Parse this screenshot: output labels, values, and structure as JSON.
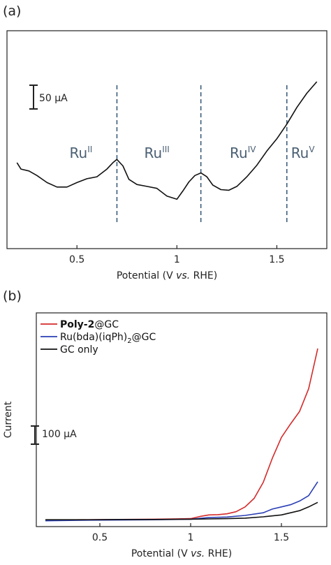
{
  "panel_a": {
    "label": "(a)",
    "scale_bar": "50 µA",
    "region_labels": [
      {
        "base": "Ru",
        "sup": "II",
        "x": 0.52
      },
      {
        "base": "Ru",
        "sup": "III",
        "x": 0.9
      },
      {
        "base": "Ru",
        "sup": "IV",
        "x": 1.33
      },
      {
        "base": "Ru",
        "sup": "V",
        "x": 1.63
      }
    ]
  },
  "panel_b": {
    "label": "(b)",
    "scale_bar": "100 µA",
    "legend": [
      {
        "bold": "Poly-2",
        "rest": "@GC",
        "sub": "",
        "after": "",
        "color": "#d42a2a"
      },
      {
        "bold": "",
        "rest": "Ru(bda)(iqPh)",
        "sub": "2",
        "after": "@GC",
        "color": "#2a3fb5"
      },
      {
        "bold": "",
        "rest": "GC only",
        "sub": "",
        "after": "",
        "color": "#111111"
      }
    ]
  },
  "chart_data": [
    {
      "type": "line",
      "xlabel_parts": [
        "Potential (V ",
        "vs.",
        " RHE)"
      ],
      "ylabel": "",
      "xlim": [
        0.15,
        1.75
      ],
      "x_ticks": [
        "0.5",
        "1",
        "1.5"
      ],
      "x_tick_values": [
        0.5,
        1.0,
        1.5
      ],
      "ylim": [
        0,
        200
      ],
      "y_units": "µA (relative)",
      "vlines": [
        0.7,
        1.12,
        1.55
      ],
      "series": [
        {
          "color": "#111111",
          "x": [
            0.2,
            0.22,
            0.26,
            0.3,
            0.35,
            0.4,
            0.45,
            0.5,
            0.55,
            0.6,
            0.65,
            0.68,
            0.7,
            0.73,
            0.76,
            0.8,
            0.85,
            0.9,
            0.95,
            1.0,
            1.03,
            1.06,
            1.09,
            1.12,
            1.15,
            1.18,
            1.22,
            1.26,
            1.3,
            1.35,
            1.4,
            1.45,
            1.5,
            1.55,
            1.6,
            1.65,
            1.7
          ],
          "y": [
            86,
            76,
            73,
            66,
            55,
            48,
            48,
            55,
            61,
            64,
            76,
            86,
            91,
            81,
            60,
            52,
            49,
            46,
            34,
            29,
            42,
            56,
            66,
            70,
            64,
            51,
            44,
            43,
            49,
            64,
            82,
            104,
            123,
            146,
            172,
            194,
            212
          ]
        }
      ]
    },
    {
      "type": "line",
      "ylabel": "Current",
      "xlabel_parts": [
        "Potential (V ",
        "vs.",
        " RHE)"
      ],
      "xlim": [
        0.15,
        1.75
      ],
      "x_ticks": [
        "0.5",
        "1",
        "1.5"
      ],
      "x_tick_values": [
        0.5,
        1.0,
        1.5
      ],
      "ylim": [
        0,
        700
      ],
      "y_units": "µA (relative)",
      "series": [
        {
          "name": "Poly-2@GC",
          "color": "#d42a2a",
          "x": [
            0.2,
            0.4,
            0.6,
            0.8,
            1.0,
            1.05,
            1.1,
            1.15,
            1.2,
            1.25,
            1.3,
            1.35,
            1.4,
            1.45,
            1.5,
            1.55,
            1.6,
            1.65,
            1.7
          ],
          "y": [
            8,
            10,
            11,
            12,
            14,
            22,
            28,
            29,
            32,
            40,
            58,
            90,
            150,
            240,
            318,
            368,
            415,
            500,
            650
          ]
        },
        {
          "name": "Ru(bda)(iqPh)2@GC",
          "color": "#2a3fb5",
          "x": [
            0.2,
            0.4,
            0.6,
            0.8,
            1.0,
            1.1,
            1.2,
            1.3,
            1.4,
            1.45,
            1.5,
            1.55,
            1.6,
            1.65,
            1.7
          ],
          "y": [
            6,
            8,
            9,
            10,
            12,
            18,
            20,
            26,
            36,
            50,
            58,
            66,
            80,
            100,
            152
          ]
        },
        {
          "name": "GC only",
          "color": "#111111",
          "x": [
            0.2,
            0.4,
            0.6,
            0.8,
            1.0,
            1.1,
            1.2,
            1.3,
            1.4,
            1.5,
            1.6,
            1.65,
            1.7
          ],
          "y": [
            10,
            10,
            11,
            11,
            12,
            13,
            14,
            16,
            21,
            28,
            44,
            58,
            75
          ]
        }
      ]
    }
  ]
}
